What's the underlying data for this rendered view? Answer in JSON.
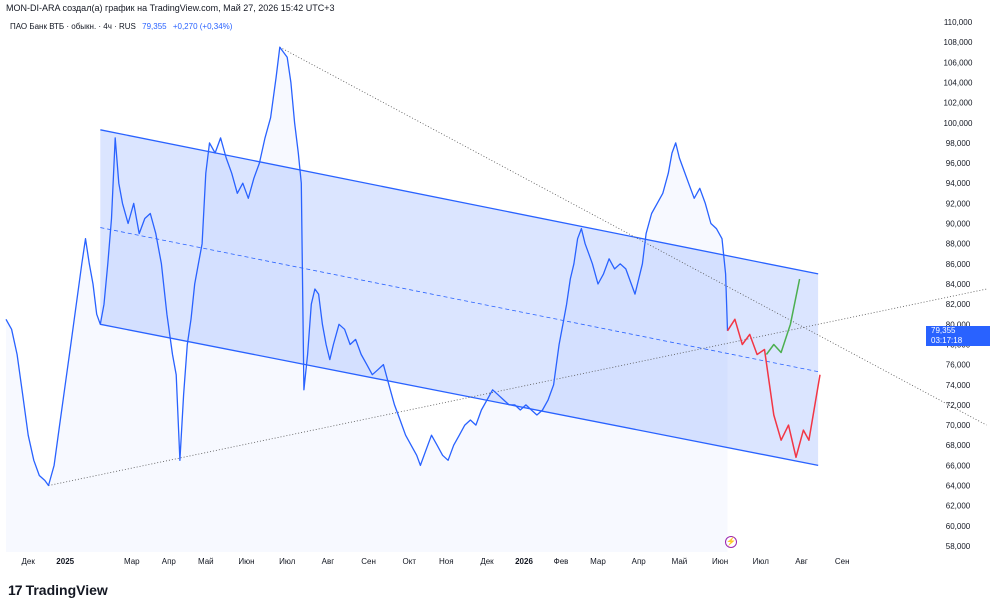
{
  "header": {
    "author_line": "MON-DI-ARA создал(а) график на TradingView.com, Май 27, 2026 15:42 UTC+3"
  },
  "legend": {
    "symbol": "ПАО Банк ВТБ · обыкн. · 4ч · RUS",
    "last": "79,355",
    "change": "+0,270 (+0,34%)"
  },
  "price_tag": {
    "price": "79,355",
    "countdown": "03:17:18"
  },
  "brand": {
    "name": "TradingView",
    "mark": "17"
  },
  "colors": {
    "line": "#2962ff",
    "channel_fill": "#2962ff",
    "forecast_up": "#4caf50",
    "forecast_down": "#f23645",
    "dotted": "#555555",
    "event": "#9c27b0"
  },
  "icons": {
    "event": "lightning-icon"
  },
  "chart_data": {
    "type": "line",
    "y_axis_side": "right",
    "ylim": [
      57,
      111
    ],
    "y_ticks": [
      58,
      60,
      62,
      64,
      66,
      68,
      70,
      72,
      74,
      76,
      78,
      80,
      82,
      84,
      86,
      88,
      90,
      92,
      94,
      96,
      98,
      100,
      102,
      104,
      106,
      108,
      110
    ],
    "y_tick_labels": [
      "58,000",
      "60,000",
      "62,000",
      "64,000",
      "66,000",
      "68,000",
      "70,000",
      "72,000",
      "74,000",
      "76,000",
      "78,000",
      "80,000",
      "82,000",
      "84,000",
      "86,000",
      "88,000",
      "90,000",
      "92,000",
      "94,000",
      "96,000",
      "98,000",
      "100,000",
      "102,000",
      "104,000",
      "106,000",
      "108,000",
      "110,000"
    ],
    "x_ticks": [
      {
        "label": "Дек",
        "t": 0.6,
        "bold": false
      },
      {
        "label": "2025",
        "t": 1.6,
        "bold": true
      },
      {
        "label": "Мар",
        "t": 3.4,
        "bold": false
      },
      {
        "label": "Апр",
        "t": 4.4,
        "bold": false
      },
      {
        "label": "Май",
        "t": 5.4,
        "bold": false
      },
      {
        "label": "Июн",
        "t": 6.5,
        "bold": false
      },
      {
        "label": "Июл",
        "t": 7.6,
        "bold": false
      },
      {
        "label": "Авг",
        "t": 8.7,
        "bold": false
      },
      {
        "label": "Сен",
        "t": 9.8,
        "bold": false
      },
      {
        "label": "Окт",
        "t": 10.9,
        "bold": false
      },
      {
        "label": "Ноя",
        "t": 11.9,
        "bold": false
      },
      {
        "label": "Дек",
        "t": 13.0,
        "bold": false
      },
      {
        "label": "2026",
        "t": 14.0,
        "bold": true
      },
      {
        "label": "Фев",
        "t": 15.0,
        "bold": false
      },
      {
        "label": "Мар",
        "t": 16.0,
        "bold": false
      },
      {
        "label": "Апр",
        "t": 17.1,
        "bold": false
      },
      {
        "label": "Май",
        "t": 18.2,
        "bold": false
      },
      {
        "label": "Июн",
        "t": 19.3,
        "bold": false
      },
      {
        "label": "Июл",
        "t": 20.4,
        "bold": false
      },
      {
        "label": "Авг",
        "t": 21.5,
        "bold": false
      },
      {
        "label": "Сен",
        "t": 22.6,
        "bold": false
      }
    ],
    "xlim": [
      0,
      26.5
    ],
    "series": [
      {
        "kind": "price",
        "points": [
          [
            0.0,
            80.5
          ],
          [
            0.15,
            79.5
          ],
          [
            0.3,
            77.0
          ],
          [
            0.45,
            73.0
          ],
          [
            0.6,
            69.0
          ],
          [
            0.75,
            66.5
          ],
          [
            0.9,
            65.0
          ],
          [
            1.05,
            64.5
          ],
          [
            1.15,
            64.0
          ],
          [
            1.3,
            66.0
          ],
          [
            1.45,
            70.0
          ],
          [
            1.6,
            74.0
          ],
          [
            1.75,
            78.0
          ],
          [
            1.9,
            82.0
          ],
          [
            2.05,
            86.0
          ],
          [
            2.15,
            88.5
          ],
          [
            2.25,
            86.0
          ],
          [
            2.35,
            84.0
          ],
          [
            2.45,
            81.0
          ],
          [
            2.55,
            80.0
          ],
          [
            2.65,
            82.0
          ],
          [
            2.75,
            86.0
          ],
          [
            2.85,
            90.5
          ],
          [
            2.95,
            98.5
          ],
          [
            3.05,
            94.0
          ],
          [
            3.15,
            92.0
          ],
          [
            3.3,
            90.0
          ],
          [
            3.45,
            92.0
          ],
          [
            3.6,
            89.0
          ],
          [
            3.75,
            90.5
          ],
          [
            3.9,
            91.0
          ],
          [
            4.05,
            89.0
          ],
          [
            4.2,
            86.0
          ],
          [
            4.35,
            81.0
          ],
          [
            4.5,
            77.0
          ],
          [
            4.6,
            75.0
          ],
          [
            4.7,
            66.5
          ],
          [
            4.8,
            73.0
          ],
          [
            4.9,
            78.0
          ],
          [
            5.0,
            80.5
          ],
          [
            5.1,
            84.0
          ],
          [
            5.2,
            86.0
          ],
          [
            5.3,
            88.0
          ],
          [
            5.4,
            95.0
          ],
          [
            5.5,
            98.0
          ],
          [
            5.65,
            97.0
          ],
          [
            5.8,
            98.5
          ],
          [
            5.95,
            96.5
          ],
          [
            6.1,
            95.0
          ],
          [
            6.25,
            93.0
          ],
          [
            6.4,
            94.0
          ],
          [
            6.55,
            92.5
          ],
          [
            6.7,
            94.5
          ],
          [
            6.85,
            96.0
          ],
          [
            7.0,
            98.5
          ],
          [
            7.15,
            100.5
          ],
          [
            7.3,
            104.5
          ],
          [
            7.4,
            107.5
          ],
          [
            7.5,
            107.0
          ],
          [
            7.6,
            106.5
          ],
          [
            7.7,
            104.0
          ],
          [
            7.8,
            100.0
          ],
          [
            7.9,
            97.0
          ],
          [
            7.98,
            94.0
          ],
          [
            8.05,
            73.5
          ],
          [
            8.15,
            77.0
          ],
          [
            8.25,
            82.0
          ],
          [
            8.35,
            83.5
          ],
          [
            8.45,
            83.0
          ],
          [
            8.55,
            80.0
          ],
          [
            8.65,
            78.0
          ],
          [
            8.75,
            76.5
          ],
          [
            8.85,
            78.0
          ],
          [
            9.0,
            80.0
          ],
          [
            9.15,
            79.5
          ],
          [
            9.3,
            78.0
          ],
          [
            9.45,
            78.5
          ],
          [
            9.6,
            77.0
          ],
          [
            9.75,
            76.0
          ],
          [
            9.9,
            75.0
          ],
          [
            10.05,
            75.5
          ],
          [
            10.2,
            76.0
          ],
          [
            10.35,
            74.0
          ],
          [
            10.5,
            72.0
          ],
          [
            10.65,
            70.5
          ],
          [
            10.8,
            69.0
          ],
          [
            10.95,
            68.0
          ],
          [
            11.1,
            67.0
          ],
          [
            11.2,
            66.0
          ],
          [
            11.35,
            67.5
          ],
          [
            11.5,
            69.0
          ],
          [
            11.65,
            68.0
          ],
          [
            11.8,
            67.0
          ],
          [
            11.95,
            66.5
          ],
          [
            12.1,
            68.0
          ],
          [
            12.25,
            69.0
          ],
          [
            12.4,
            70.0
          ],
          [
            12.55,
            70.5
          ],
          [
            12.7,
            70.0
          ],
          [
            12.85,
            71.5
          ],
          [
            13.0,
            72.5
          ],
          [
            13.15,
            73.5
          ],
          [
            13.3,
            73.0
          ],
          [
            13.45,
            72.5
          ],
          [
            13.6,
            72.0
          ],
          [
            13.75,
            72.0
          ],
          [
            13.9,
            71.5
          ],
          [
            14.05,
            72.0
          ],
          [
            14.2,
            71.5
          ],
          [
            14.35,
            71.0
          ],
          [
            14.5,
            71.5
          ],
          [
            14.65,
            72.5
          ],
          [
            14.8,
            74.0
          ],
          [
            14.95,
            78.0
          ],
          [
            15.05,
            80.0
          ],
          [
            15.15,
            82.0
          ],
          [
            15.25,
            84.5
          ],
          [
            15.35,
            86.0
          ],
          [
            15.45,
            88.5
          ],
          [
            15.55,
            89.5
          ],
          [
            15.65,
            88.0
          ],
          [
            15.75,
            87.0
          ],
          [
            15.85,
            86.0
          ],
          [
            16.0,
            84.0
          ],
          [
            16.15,
            85.0
          ],
          [
            16.3,
            86.5
          ],
          [
            16.45,
            85.5
          ],
          [
            16.6,
            86.0
          ],
          [
            16.75,
            85.5
          ],
          [
            16.9,
            84.0
          ],
          [
            17.0,
            83.0
          ],
          [
            17.1,
            84.5
          ],
          [
            17.2,
            86.0
          ],
          [
            17.3,
            89.0
          ],
          [
            17.45,
            91.0
          ],
          [
            17.6,
            92.0
          ],
          [
            17.75,
            93.0
          ],
          [
            17.9,
            95.0
          ],
          [
            18.0,
            97.0
          ],
          [
            18.1,
            98.0
          ],
          [
            18.2,
            96.5
          ],
          [
            18.3,
            95.5
          ],
          [
            18.45,
            94.0
          ],
          [
            18.6,
            92.5
          ],
          [
            18.75,
            93.5
          ],
          [
            18.9,
            92.0
          ],
          [
            19.05,
            90.0
          ],
          [
            19.2,
            89.5
          ],
          [
            19.35,
            88.5
          ],
          [
            19.45,
            85.0
          ],
          [
            19.5,
            79.355
          ]
        ]
      },
      {
        "kind": "forecast_down",
        "points": [
          [
            19.5,
            79.355
          ],
          [
            19.7,
            80.5
          ],
          [
            19.9,
            78.0
          ],
          [
            20.1,
            79.0
          ],
          [
            20.3,
            77.0
          ],
          [
            20.5,
            77.5
          ],
          [
            20.75,
            71.0
          ],
          [
            20.95,
            68.5
          ],
          [
            21.15,
            70.0
          ],
          [
            21.35,
            66.8
          ],
          [
            21.55,
            69.5
          ],
          [
            21.7,
            68.5
          ],
          [
            22.0,
            75.0
          ]
        ]
      },
      {
        "kind": "forecast_up",
        "points": [
          [
            20.55,
            77.0
          ],
          [
            20.75,
            78.0
          ],
          [
            20.95,
            77.2
          ],
          [
            21.2,
            80.0
          ],
          [
            21.45,
            84.5
          ]
        ]
      }
    ],
    "channel": {
      "upper": [
        [
          2.55,
          99.3
        ],
        [
          21.95,
          85.0
        ]
      ],
      "middle": [
        [
          2.55,
          89.6
        ],
        [
          21.95,
          75.3
        ]
      ],
      "lower": [
        [
          2.55,
          80.0
        ],
        [
          21.95,
          66.0
        ]
      ]
    },
    "dotted_lines": [
      {
        "from": [
          1.15,
          64.0
        ],
        "to": [
          26.5,
          83.5
        ]
      },
      {
        "from": [
          7.4,
          107.5
        ],
        "to": [
          26.5,
          70.0
        ]
      }
    ]
  }
}
